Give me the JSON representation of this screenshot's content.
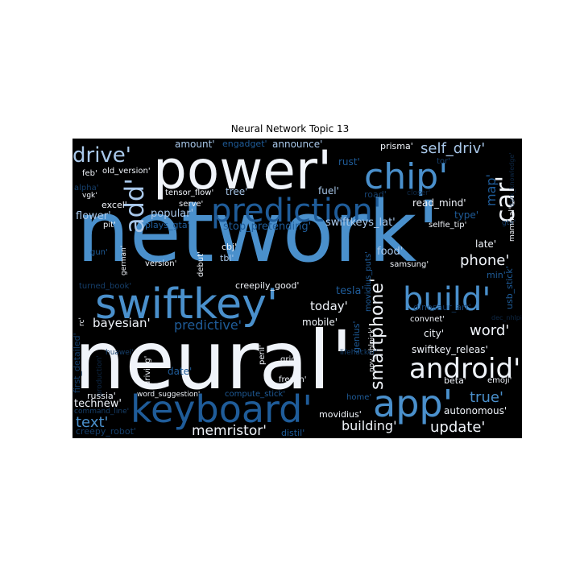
{
  "chart_data": {
    "type": "wordcloud",
    "title": "Neural Network Topic 13",
    "background": "#000000",
    "palette": {
      "white": "#f0f4fa",
      "light": "#a9c8ea",
      "mid": "#4a90cc",
      "dark": "#1f5c99",
      "deep": "#163f6b",
      "faint": "#0e2846"
    },
    "words": [
      {
        "text": "network'",
        "color": "mid"
      },
      {
        "text": "neural'",
        "color": "white"
      },
      {
        "text": "power'",
        "color": "white"
      },
      {
        "text": "swiftkey'",
        "color": "mid"
      },
      {
        "text": "keyboard'",
        "color": "dark"
      },
      {
        "text": "prediction'",
        "color": "dark"
      },
      {
        "text": "chip'",
        "color": "mid"
      },
      {
        "text": "app'",
        "color": "mid"
      },
      {
        "text": "build'",
        "color": "mid"
      },
      {
        "text": "android'",
        "color": "white"
      },
      {
        "text": "car'",
        "color": "white"
      },
      {
        "text": "add'",
        "color": "light"
      },
      {
        "text": "drive'",
        "color": "light"
      },
      {
        "text": "smartphone'",
        "color": "white"
      },
      {
        "text": "self_driv'",
        "color": "light"
      },
      {
        "text": "text'",
        "color": "mid"
      },
      {
        "text": "true'",
        "color": "mid"
      },
      {
        "text": "word'",
        "color": "white"
      },
      {
        "text": "phone'",
        "color": "white"
      },
      {
        "text": "update'",
        "color": "white"
      },
      {
        "text": "memristor'",
        "color": "white"
      },
      {
        "text": "building'",
        "color": "white"
      },
      {
        "text": "today'",
        "color": "white"
      },
      {
        "text": "bayesian'",
        "color": "white"
      },
      {
        "text": "predictive'",
        "color": "dark"
      },
      {
        "text": "map'",
        "color": "dark"
      },
      {
        "text": "technew'",
        "color": "white"
      },
      {
        "text": "mobile'",
        "color": "white"
      },
      {
        "text": "flower'",
        "color": "light"
      },
      {
        "text": "popular'",
        "color": "light"
      },
      {
        "text": "stop_pretending'",
        "color": "dark"
      },
      {
        "text": "swiftkeys_lat'",
        "color": "light"
      },
      {
        "text": "autonomous'",
        "color": "white"
      },
      {
        "text": "swiftkey_releas'",
        "color": "white"
      },
      {
        "text": "city'",
        "color": "white"
      },
      {
        "text": "tesla'",
        "color": "dark"
      },
      {
        "text": "food'",
        "color": "light"
      },
      {
        "text": "type'",
        "color": "dark"
      },
      {
        "text": "late'",
        "color": "white"
      },
      {
        "text": "tree'",
        "color": "light"
      },
      {
        "text": "announce'",
        "color": "light"
      },
      {
        "text": "amount'",
        "color": "light"
      },
      {
        "text": "engadget'",
        "color": "dark"
      },
      {
        "text": "prisma'",
        "color": "white"
      },
      {
        "text": "read_mind'",
        "color": "white"
      },
      {
        "text": "selfie_tip'",
        "color": "white"
      },
      {
        "text": "rust'",
        "color": "dark"
      },
      {
        "text": "fuel'",
        "color": "light"
      },
      {
        "text": "road'",
        "color": "deep"
      },
      {
        "text": "excel'",
        "color": "white"
      },
      {
        "text": "feb'",
        "color": "white"
      },
      {
        "text": "old_version'",
        "color": "white"
      },
      {
        "text": "tensor_flow'",
        "color": "white"
      },
      {
        "text": "serve'",
        "color": "white"
      },
      {
        "text": "pit'",
        "color": "white"
      },
      {
        "text": "plays_gta'",
        "color": "dark"
      },
      {
        "text": "cbj'",
        "color": "white"
      },
      {
        "text": "tbl'",
        "color": "light"
      },
      {
        "text": "version'",
        "color": "white"
      },
      {
        "text": "debut'",
        "color": "white"
      },
      {
        "text": "samsung'",
        "color": "white"
      },
      {
        "text": "min'",
        "color": "dark"
      },
      {
        "text": "usb_stick'",
        "color": "dark"
      },
      {
        "text": "creepily_good'",
        "color": "white"
      },
      {
        "text": "turned_book'",
        "color": "deep"
      },
      {
        "text": "german'",
        "color": "white"
      },
      {
        "text": "gun'",
        "color": "dark"
      },
      {
        "text": "dinosaur_art'",
        "color": "deep"
      },
      {
        "text": "convnet'",
        "color": "white"
      },
      {
        "text": "movidius_puts'",
        "color": "dark"
      },
      {
        "text": "genius'",
        "color": "dark"
      },
      {
        "text": "peril'",
        "color": "white"
      },
      {
        "text": "grid'",
        "color": "white"
      },
      {
        "text": "french'",
        "color": "white"
      },
      {
        "text": "nov_nhlpick'",
        "color": "white"
      },
      {
        "text": "beta'",
        "color": "white"
      },
      {
        "text": "emoji'",
        "color": "white"
      },
      {
        "text": "date'",
        "color": "dark"
      },
      {
        "text": "driving'",
        "color": "white"
      },
      {
        "text": "huawei'",
        "color": "deep"
      },
      {
        "text": "lifehacker'",
        "color": "deep"
      },
      {
        "text": "first_detailed'",
        "color": "deep"
      },
      {
        "text": "production'",
        "color": "faint"
      },
      {
        "text": "russia'",
        "color": "white"
      },
      {
        "text": "word_suggestion'",
        "color": "white"
      },
      {
        "text": "compute_stick'",
        "color": "dark"
      },
      {
        "text": "home'",
        "color": "dark"
      },
      {
        "text": "movidius'",
        "color": "white"
      },
      {
        "text": "distil'",
        "color": "dark"
      },
      {
        "text": "command_line'",
        "color": "deep"
      },
      {
        "text": "creepy_robot'",
        "color": "deep"
      },
      {
        "text": "alpha'",
        "color": "deep"
      },
      {
        "text": "vgk'",
        "color": "white"
      },
      {
        "text": "tor'",
        "color": "deep"
      },
      {
        "text": "closer'",
        "color": "faint"
      },
      {
        "text": "gta'",
        "color": "deep"
      },
      {
        "text": "mammal'",
        "color": "white"
      },
      {
        "text": "dark_knowledge'",
        "color": "faint"
      },
      {
        "text": "dec_nhlpick'",
        "color": "faint"
      },
      {
        "text": "rc'",
        "color": "white"
      }
    ]
  }
}
